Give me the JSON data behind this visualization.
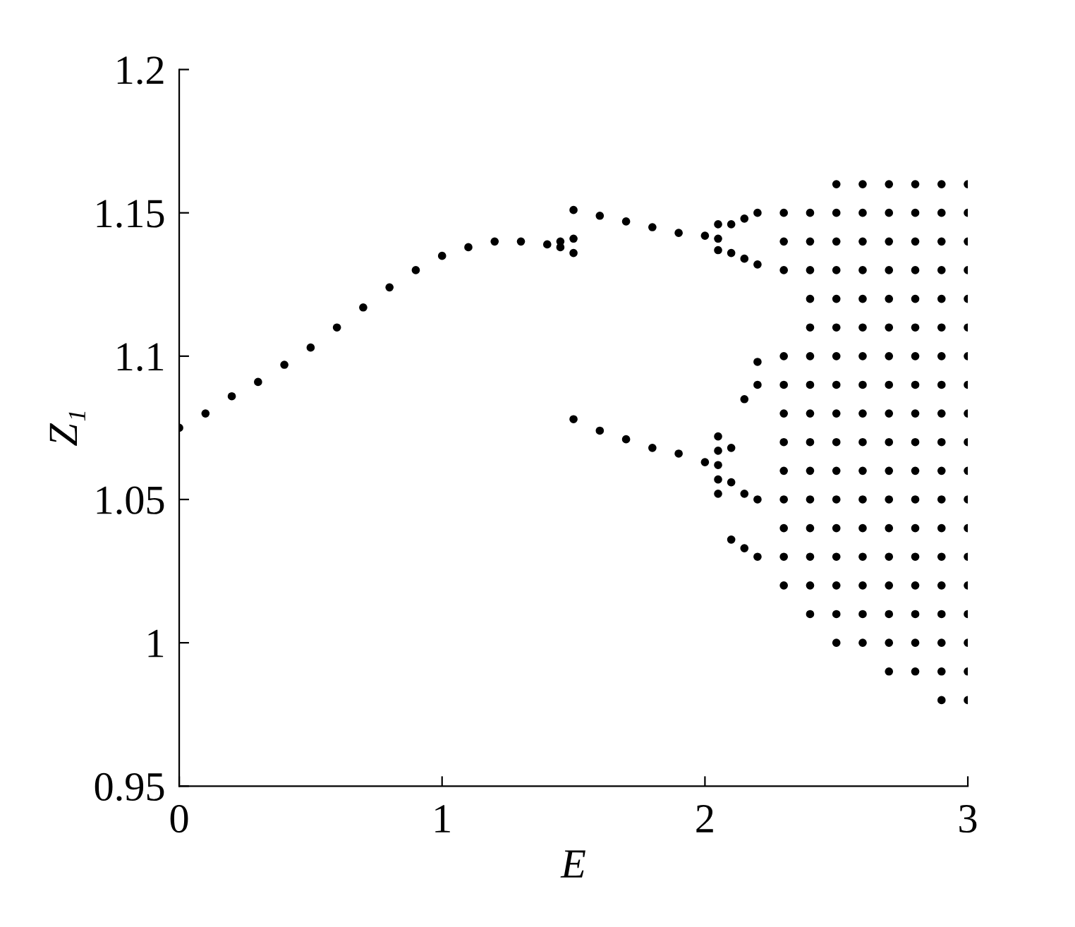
{
  "chart_data": {
    "type": "scatter",
    "xlabel": "E",
    "ylabel": "Z₁",
    "marker": "circle",
    "grid": false,
    "xlim": [
      0,
      3
    ],
    "ylim": [
      0.95,
      1.2
    ],
    "xticks": [
      0,
      1,
      2,
      3
    ],
    "yticks": [
      0.95,
      1,
      1.05,
      1.1,
      1.15,
      1.2
    ],
    "series": [
      {
        "color": "#000000",
        "x": [
          0,
          0.1,
          0.2,
          0.3,
          0.4,
          0.5,
          0.6,
          0.7,
          0.8,
          0.9,
          1.0,
          1.1,
          1.2,
          1.3,
          1.4,
          1.45,
          1.5,
          1.45,
          1.5
        ],
        "values": [
          1.075,
          1.08,
          1.086,
          1.091,
          1.097,
          1.103,
          1.11,
          1.117,
          1.124,
          1.13,
          1.135,
          1.138,
          1.14,
          1.14,
          1.139,
          1.14,
          1.141,
          1.138,
          1.136
        ]
      },
      {
        "color": "#000000",
        "x": [
          1.5,
          1.6,
          1.7,
          1.8,
          1.9,
          2.0,
          2.05,
          2.05,
          2.05,
          1.5,
          1.6,
          1.7,
          1.8,
          1.9,
          2.0,
          2.05,
          2.05,
          2.05,
          2.05,
          2.05
        ],
        "values": [
          1.151,
          1.149,
          1.147,
          1.145,
          1.143,
          1.142,
          1.141,
          1.137,
          1.146,
          1.078,
          1.074,
          1.071,
          1.068,
          1.066,
          1.063,
          1.062,
          1.052,
          1.057,
          1.067,
          1.072
        ]
      },
      {
        "color": "#000000",
        "x": [
          2.1,
          2.1,
          2.1,
          2.1,
          2.1,
          2.15,
          2.15,
          2.15,
          2.15,
          2.15,
          2.2,
          2.2,
          2.2,
          2.2,
          2.2,
          2.2
        ],
        "values": [
          1.146,
          1.136,
          1.068,
          1.056,
          1.036,
          1.148,
          1.134,
          1.085,
          1.052,
          1.033,
          1.15,
          1.132,
          1.09,
          1.05,
          1.03,
          1.098
        ]
      },
      {
        "color": "#000000",
        "x": [
          2.3,
          2.3,
          2.3,
          2.3,
          2.3,
          2.3,
          2.3,
          2.3,
          2.3,
          2.3,
          2.3,
          2.3,
          2.4,
          2.4,
          2.4,
          2.4,
          2.4,
          2.4,
          2.4,
          2.4,
          2.4,
          2.4,
          2.4,
          2.4,
          2.4,
          2.4,
          2.4,
          2.5,
          2.5,
          2.5,
          2.5,
          2.5,
          2.5,
          2.5,
          2.5,
          2.5,
          2.5,
          2.5,
          2.5,
          2.5,
          2.5,
          2.5,
          2.5,
          2.5,
          2.6,
          2.6,
          2.6,
          2.6,
          2.6,
          2.6,
          2.6,
          2.6,
          2.6,
          2.6,
          2.6,
          2.6,
          2.6,
          2.6,
          2.6,
          2.6,
          2.6
        ],
        "values": [
          1.02,
          1.03,
          1.04,
          1.05,
          1.06,
          1.07,
          1.08,
          1.09,
          1.1,
          1.13,
          1.14,
          1.15,
          1.01,
          1.02,
          1.03,
          1.04,
          1.05,
          1.06,
          1.07,
          1.08,
          1.09,
          1.1,
          1.11,
          1.12,
          1.13,
          1.14,
          1.15,
          1.0,
          1.01,
          1.02,
          1.03,
          1.04,
          1.05,
          1.06,
          1.07,
          1.08,
          1.09,
          1.1,
          1.11,
          1.12,
          1.13,
          1.14,
          1.15,
          1.16,
          1.0,
          1.01,
          1.02,
          1.03,
          1.04,
          1.05,
          1.06,
          1.07,
          1.08,
          1.09,
          1.1,
          1.11,
          1.12,
          1.13,
          1.14,
          1.15,
          1.16
        ]
      },
      {
        "color": "#000000",
        "x": [
          2.7,
          2.7,
          2.7,
          2.7,
          2.7,
          2.7,
          2.7,
          2.7,
          2.7,
          2.7,
          2.7,
          2.7,
          2.7,
          2.7,
          2.7,
          2.7,
          2.7,
          2.7,
          2.8,
          2.8,
          2.8,
          2.8,
          2.8,
          2.8,
          2.8,
          2.8,
          2.8,
          2.8,
          2.8,
          2.8,
          2.8,
          2.8,
          2.8,
          2.8,
          2.8,
          2.8,
          2.9,
          2.9,
          2.9,
          2.9,
          2.9,
          2.9,
          2.9,
          2.9,
          2.9,
          2.9,
          2.9,
          2.9,
          2.9,
          2.9,
          2.9,
          2.9,
          2.9,
          2.9,
          2.9,
          3.0,
          3.0,
          3.0,
          3.0,
          3.0,
          3.0,
          3.0,
          3.0,
          3.0,
          3.0,
          3.0,
          3.0,
          3.0,
          3.0,
          3.0,
          3.0,
          3.0,
          3.0,
          3.0
        ],
        "values": [
          0.99,
          1.0,
          1.01,
          1.02,
          1.03,
          1.04,
          1.05,
          1.06,
          1.07,
          1.08,
          1.09,
          1.1,
          1.11,
          1.12,
          1.13,
          1.14,
          1.15,
          1.16,
          0.99,
          1.0,
          1.01,
          1.02,
          1.03,
          1.04,
          1.05,
          1.06,
          1.07,
          1.08,
          1.09,
          1.1,
          1.11,
          1.12,
          1.13,
          1.14,
          1.15,
          1.16,
          0.98,
          0.99,
          1.0,
          1.01,
          1.02,
          1.03,
          1.04,
          1.05,
          1.06,
          1.07,
          1.08,
          1.09,
          1.1,
          1.11,
          1.12,
          1.13,
          1.14,
          1.15,
          1.16,
          0.98,
          0.99,
          1.0,
          1.01,
          1.02,
          1.03,
          1.04,
          1.05,
          1.06,
          1.07,
          1.08,
          1.09,
          1.1,
          1.11,
          1.12,
          1.13,
          1.14,
          1.15,
          1.16
        ]
      }
    ]
  }
}
